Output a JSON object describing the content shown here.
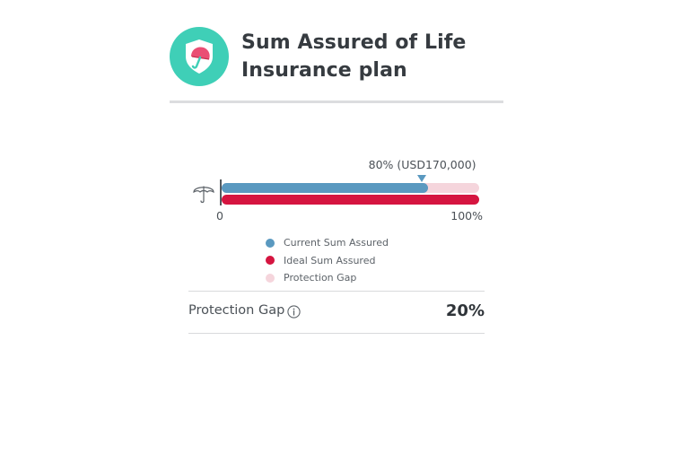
{
  "header": {
    "title": "Sum Assured of Life Insurance plan",
    "icon": "shield-umbrella-icon"
  },
  "chart_data": {
    "type": "bar",
    "orientation": "horizontal",
    "marker_label": "80% (USD170,000)",
    "series": [
      {
        "name": "Current Sum Assured",
        "value": 80,
        "color": "#5a99c0"
      },
      {
        "name": "Ideal Sum Assured",
        "value": 100,
        "color": "#d51540"
      },
      {
        "name": "Protection Gap",
        "value": 20,
        "color": "#f5d5dc"
      }
    ],
    "tick_labels": [
      "0",
      "100%"
    ],
    "xlim": [
      0,
      100
    ],
    "legend_position": "bottom"
  },
  "legend": [
    {
      "label": "Current Sum Assured",
      "color": "#5a99c0"
    },
    {
      "label": "Ideal Sum Assured",
      "color": "#d51540"
    },
    {
      "label": "Protection Gap",
      "color": "#f5d5dc"
    }
  ],
  "summary": {
    "label": "Protection Gap",
    "value": "20%"
  }
}
